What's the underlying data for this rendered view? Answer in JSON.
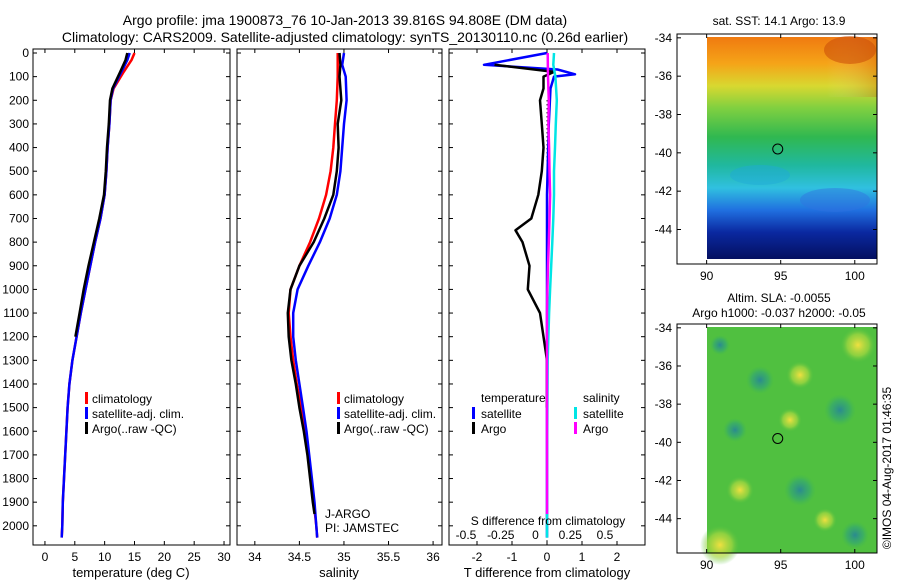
{
  "title": {
    "line1": "Argo profile: jma 1900873_76 10-Jan-2013 39.816S 94.808E (DM data)",
    "line2": "Climatology: CARS2009. Satellite-adjusted climatology: synTS_20130110.nc (0.26d earlier)"
  },
  "colors": {
    "climatology": "#ff0000",
    "satellite": "#0000ff",
    "argo": "#000000",
    "satellite_s": "#00e5e5",
    "argo_s": "#ff00ff"
  },
  "credit": "©IMOS 04-Aug-2017 01:46:35",
  "chart_data": [
    {
      "id": "temperature",
      "type": "line",
      "xlabel": "temperature (deg C)",
      "xlim": [
        -2,
        31
      ],
      "xticks": [
        0,
        5,
        10,
        15,
        20,
        25,
        30
      ],
      "ylim": [
        0,
        2060
      ],
      "yticks": [
        0,
        100,
        200,
        300,
        400,
        500,
        600,
        700,
        800,
        900,
        1000,
        1100,
        1200,
        1300,
        1400,
        1500,
        1600,
        1700,
        1800,
        1900,
        2000
      ],
      "y_reversed": true,
      "legend": [
        "climatology",
        "satellite-adj. clim.",
        "Argo(..raw -QC)"
      ],
      "legend_position": "lower-right",
      "series": [
        {
          "name": "climatology",
          "color_key": "climatology",
          "points": [
            [
              15,
              0
            ],
            [
              14.5,
              30
            ],
            [
              13.2,
              80
            ],
            [
              11.5,
              150
            ],
            [
              11,
              200
            ],
            [
              10.8,
              300
            ],
            [
              10.5,
              400
            ],
            [
              10.3,
              500
            ],
            [
              10,
              600
            ],
            [
              9.3,
              700
            ],
            [
              8.4,
              800
            ],
            [
              7.6,
              900
            ],
            [
              6.8,
              1000
            ],
            [
              6.0,
              1100
            ],
            [
              5.3,
              1200
            ],
            [
              4.6,
              1300
            ],
            [
              4.1,
              1400
            ],
            [
              3.8,
              1500
            ],
            [
              3.6,
              1600
            ],
            [
              3.4,
              1700
            ],
            [
              3.2,
              1800
            ],
            [
              3.0,
              1900
            ],
            [
              2.9,
              2000
            ],
            [
              2.8,
              2050
            ]
          ]
        },
        {
          "name": "satellite-adj. clim.",
          "color_key": "satellite",
          "points": [
            [
              14.2,
              0
            ],
            [
              13.8,
              30
            ],
            [
              12.8,
              80
            ],
            [
              11.4,
              150
            ],
            [
              11.0,
              200
            ],
            [
              10.8,
              300
            ],
            [
              10.5,
              400
            ],
            [
              10.3,
              500
            ],
            [
              10,
              600
            ],
            [
              9.3,
              700
            ],
            [
              8.4,
              800
            ],
            [
              7.6,
              900
            ],
            [
              6.8,
              1000
            ],
            [
              6.0,
              1100
            ],
            [
              5.3,
              1200
            ],
            [
              4.6,
              1300
            ],
            [
              4.1,
              1400
            ],
            [
              3.8,
              1500
            ],
            [
              3.6,
              1600
            ],
            [
              3.4,
              1700
            ],
            [
              3.2,
              1800
            ],
            [
              3.0,
              1900
            ],
            [
              2.9,
              2000
            ],
            [
              2.8,
              2050
            ]
          ]
        },
        {
          "name": "Argo(..raw -QC)",
          "color_key": "argo",
          "points": [
            [
              13.8,
              0
            ],
            [
              13.5,
              30
            ],
            [
              12.6,
              80
            ],
            [
              11.3,
              150
            ],
            [
              10.9,
              200
            ],
            [
              10.7,
              300
            ],
            [
              10.4,
              400
            ],
            [
              10.2,
              500
            ],
            [
              9.9,
              600
            ],
            [
              9.1,
              700
            ],
            [
              8.2,
              800
            ],
            [
              7.3,
              900
            ],
            [
              6.5,
              1000
            ],
            [
              5.8,
              1100
            ],
            [
              5.1,
              1200
            ]
          ]
        }
      ]
    },
    {
      "id": "salinity",
      "type": "line",
      "xlabel": "salinity",
      "xlim": [
        33.8,
        36.1
      ],
      "xticks": [
        34,
        34.5,
        35,
        35.5,
        36
      ],
      "xticklabels": [
        "34",
        "34.5",
        "35",
        "35.5",
        "36"
      ],
      "ylim": [
        0,
        2060
      ],
      "y_reversed": true,
      "legend": [
        "climatology",
        "satellite-adj. clim.",
        "Argo(..raw -QC)"
      ],
      "legend_position": "lower-right",
      "annotation": [
        "J-ARGO",
        "PI: JAMSTEC"
      ],
      "series": [
        {
          "name": "climatology",
          "color_key": "climatology",
          "points": [
            [
              34.93,
              0
            ],
            [
              34.93,
              100
            ],
            [
              34.92,
              200
            ],
            [
              34.9,
              300
            ],
            [
              34.88,
              400
            ],
            [
              34.85,
              500
            ],
            [
              34.8,
              600
            ],
            [
              34.72,
              700
            ],
            [
              34.62,
              800
            ],
            [
              34.5,
              900
            ],
            [
              34.4,
              1000
            ],
            [
              34.38,
              1100
            ],
            [
              34.4,
              1200
            ],
            [
              34.43,
              1300
            ],
            [
              34.47,
              1400
            ],
            [
              34.52,
              1500
            ],
            [
              34.56,
              1600
            ],
            [
              34.6,
              1700
            ],
            [
              34.63,
              1800
            ],
            [
              34.66,
              1900
            ],
            [
              34.69,
              2000
            ],
            [
              34.7,
              2050
            ]
          ]
        },
        {
          "name": "satellite-adj. clim.",
          "color_key": "satellite",
          "points": [
            [
              35.0,
              0
            ],
            [
              34.98,
              50
            ],
            [
              35.02,
              100
            ],
            [
              35.03,
              200
            ],
            [
              35.0,
              300
            ],
            [
              34.98,
              400
            ],
            [
              34.96,
              500
            ],
            [
              34.92,
              600
            ],
            [
              34.84,
              700
            ],
            [
              34.73,
              800
            ],
            [
              34.6,
              900
            ],
            [
              34.48,
              1000
            ],
            [
              34.43,
              1100
            ],
            [
              34.43,
              1200
            ],
            [
              34.46,
              1300
            ],
            [
              34.5,
              1400
            ],
            [
              34.54,
              1500
            ],
            [
              34.58,
              1600
            ],
            [
              34.61,
              1700
            ],
            [
              34.64,
              1800
            ],
            [
              34.67,
              1900
            ],
            [
              34.69,
              2000
            ],
            [
              34.7,
              2050
            ]
          ]
        },
        {
          "name": "Argo(..raw -QC)",
          "color_key": "argo",
          "points": [
            [
              34.95,
              0
            ],
            [
              34.96,
              50
            ],
            [
              34.95,
              100
            ],
            [
              34.97,
              200
            ],
            [
              34.93,
              300
            ],
            [
              34.94,
              400
            ],
            [
              34.92,
              500
            ],
            [
              34.88,
              600
            ],
            [
              34.78,
              700
            ],
            [
              34.66,
              800
            ],
            [
              34.5,
              900
            ],
            [
              34.4,
              1000
            ],
            [
              34.37,
              1100
            ],
            [
              34.38,
              1200
            ],
            [
              34.41,
              1300
            ],
            [
              34.46,
              1400
            ],
            [
              34.5,
              1500
            ],
            [
              34.55,
              1600
            ],
            [
              34.59,
              1700
            ],
            [
              34.62,
              1800
            ],
            [
              34.65,
              1900
            ],
            [
              34.67,
              1950
            ]
          ]
        }
      ]
    },
    {
      "id": "differences",
      "type": "line",
      "xlabel": "T difference from climatology",
      "xlim": [
        -2.8,
        2.8
      ],
      "xticks": [
        -2,
        -1,
        0,
        1,
        2
      ],
      "top_xlabel": "S difference from climatology",
      "top_xticks": [
        -0.5,
        -0.25,
        0,
        0.25,
        0.5
      ],
      "top_xticklabels": [
        "-0.5",
        "-0.25",
        "0",
        "0.25",
        "0.5"
      ],
      "ylim": [
        0,
        2060
      ],
      "y_reversed": true,
      "legend": {
        "temperature_title": "temperature",
        "temperature": [
          "satellite",
          "Argo"
        ],
        "salinity_title": "salinity",
        "salinity": [
          "satellite",
          "Argo"
        ]
      },
      "series": [
        {
          "name": "T satellite",
          "color_key": "satellite",
          "points": [
            [
              0,
              0
            ],
            [
              -1.8,
              50
            ],
            [
              0.3,
              70
            ],
            [
              0.8,
              90
            ],
            [
              0.2,
              100
            ],
            [
              0.1,
              150
            ],
            [
              0.05,
              300
            ],
            [
              0,
              600
            ],
            [
              0,
              1000
            ],
            [
              0,
              1500
            ],
            [
              0,
              2050
            ]
          ]
        },
        {
          "name": "T Argo",
          "color_key": "argo",
          "points": [
            [
              -1.5,
              50
            ],
            [
              0.2,
              80
            ],
            [
              -0.1,
              100
            ],
            [
              -0.1,
              150
            ],
            [
              -0.2,
              200
            ],
            [
              -0.15,
              300
            ],
            [
              -0.1,
              400
            ],
            [
              -0.15,
              500
            ],
            [
              -0.25,
              600
            ],
            [
              -0.45,
              700
            ],
            [
              -0.9,
              750
            ],
            [
              -0.7,
              800
            ],
            [
              -0.5,
              900
            ],
            [
              -0.55,
              1000
            ],
            [
              -0.2,
              1100
            ],
            [
              -0.1,
              1200
            ],
            [
              0,
              1300
            ],
            [
              0,
              1400
            ],
            [
              0,
              1500
            ]
          ]
        },
        {
          "name": "S satellite",
          "color_key": "satellite_s",
          "points": [
            [
              0.2,
              0
            ],
            [
              0.18,
              50
            ],
            [
              0.24,
              100
            ],
            [
              0.28,
              200
            ],
            [
              0.25,
              300
            ],
            [
              0.23,
              400
            ],
            [
              0.2,
              500
            ],
            [
              0.2,
              600
            ],
            [
              0.18,
              700
            ],
            [
              0.15,
              800
            ],
            [
              0.12,
              900
            ],
            [
              0.09,
              1000
            ],
            [
              0.06,
              1100
            ],
            [
              0.04,
              1200
            ],
            [
              0.02,
              1300
            ],
            [
              0.01,
              1500
            ],
            [
              0,
              1800
            ],
            [
              0,
              2050
            ]
          ]
        },
        {
          "name": "S Argo",
          "color_key": "argo_s",
          "points": [
            [
              0.02,
              0
            ],
            [
              0.03,
              100
            ],
            [
              0.05,
              200
            ],
            [
              0.04,
              300
            ],
            [
              0.06,
              400
            ],
            [
              0.07,
              500
            ],
            [
              0.09,
              600
            ],
            [
              0.07,
              700
            ],
            [
              0.05,
              800
            ],
            [
              0.03,
              900
            ],
            [
              0.01,
              1000
            ],
            [
              0,
              1100
            ],
            [
              0,
              1200
            ],
            [
              0,
              1400
            ],
            [
              0,
              1600
            ],
            [
              0,
              1950
            ]
          ]
        }
      ]
    },
    {
      "id": "sst_map",
      "type": "heatmap",
      "title": "sat. SST: 14.1  Argo: 13.9",
      "xticks": [
        90,
        95,
        100
      ],
      "yticks": [
        -34,
        -36,
        -38,
        -40,
        -42,
        -44
      ],
      "xlim": [
        88,
        101.5
      ],
      "ylim": [
        -45.8,
        -33.8
      ],
      "data_extent": {
        "x": [
          90,
          101.5
        ],
        "y": [
          -45.8,
          -34
        ]
      },
      "marker": [
        94.8,
        -39.8
      ]
    },
    {
      "id": "sla_map",
      "type": "heatmap",
      "title_line1": "Altim. SLA: -0.0055",
      "title_line2": "Argo h1000: -0.037 h2000: -0.05",
      "xticks": [
        90,
        95,
        100
      ],
      "yticks": [
        -34,
        -36,
        -38,
        -40,
        -42,
        -44
      ],
      "xlim": [
        88,
        101.5
      ],
      "ylim": [
        -45.8,
        -33.8
      ],
      "data_extent": {
        "x": [
          90,
          101.5
        ],
        "y": [
          -45.8,
          -34
        ]
      },
      "marker": [
        94.8,
        -39.8
      ]
    }
  ]
}
